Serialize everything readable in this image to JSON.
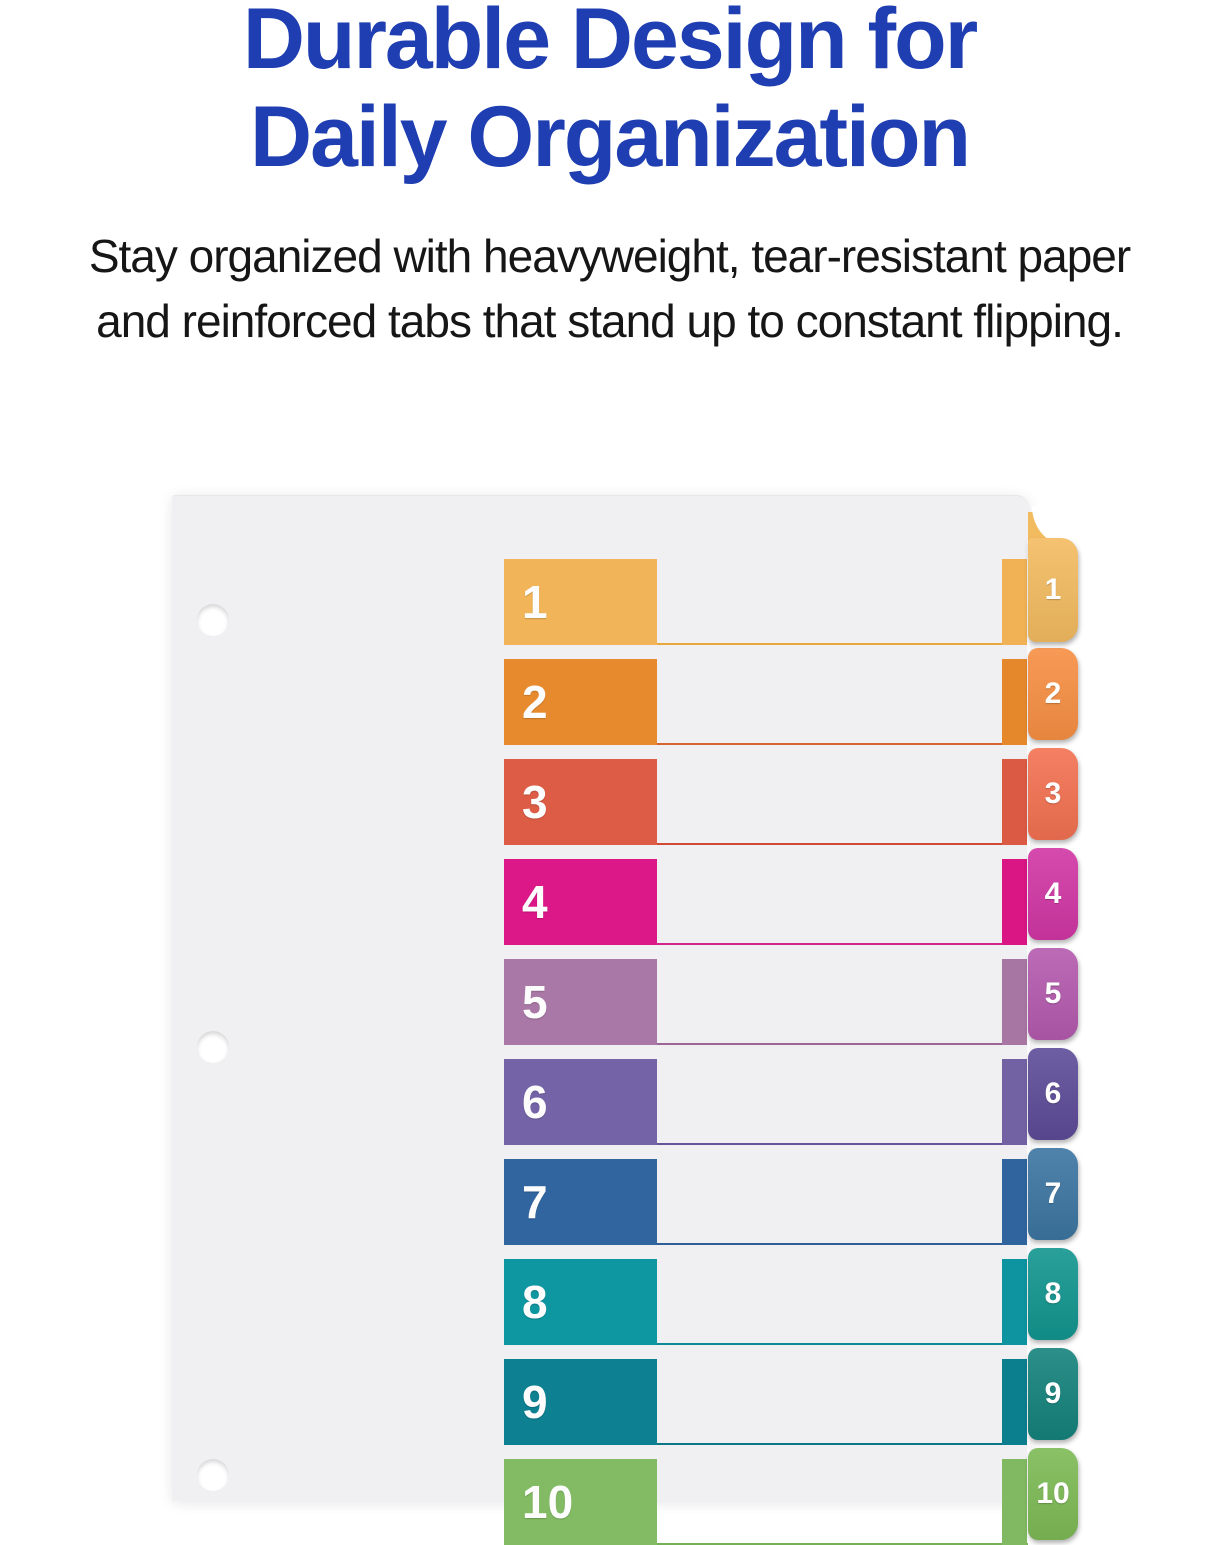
{
  "header": {
    "title_lines": [
      "Durable Design for",
      "Daily Organization"
    ],
    "subtitle_lines": [
      "Stay organized with heavyweight, tear-resistant paper",
      "and reinforced tabs that stand up to constant flipping."
    ]
  },
  "colors": {
    "background": "#ffffff",
    "title": "#1e3eb1",
    "subtitle": "#161616",
    "sheet": "#f0f0f2",
    "number_text": "#fdfdfd",
    "tab_text": "#ffffff"
  },
  "divider": {
    "hole_count": 3,
    "rows": [
      {
        "label": "1",
        "block": "#f1b459",
        "strip": "#f0b254",
        "tab": "#f3bb60",
        "rule": "#e9a83e"
      },
      {
        "label": "2",
        "block": "#e78a2d",
        "strip": "#e5882b",
        "tab": "#f78f43",
        "rule": "#d4652f"
      },
      {
        "label": "3",
        "block": "#dd5c45",
        "strip": "#db5a43",
        "tab": "#f37151",
        "rule": "#d14a33"
      },
      {
        "label": "4",
        "block": "#dc1787",
        "strip": "#da1584",
        "tab": "#d136a4",
        "rule": "#d3258d"
      },
      {
        "label": "5",
        "block": "#a978a6",
        "strip": "#a776a3",
        "tab": "#b45aae",
        "rule": "#9c6597"
      },
      {
        "label": "6",
        "block": "#7464a7",
        "strip": "#7262a4",
        "tab": "#5d4b98",
        "rule": "#66549a"
      },
      {
        "label": "7",
        "block": "#30659f",
        "strip": "#2f649e",
        "tab": "#3c75a1",
        "rule": "#2e5f96"
      },
      {
        "label": "8",
        "block": "#0e96a1",
        "strip": "#0d94a0",
        "tab": "#12958f",
        "rule": "#0c8b97"
      },
      {
        "label": "9",
        "block": "#0d8191",
        "strip": "#0c7f8f",
        "tab": "#14827b",
        "rule": "#0b7686"
      },
      {
        "label": "10",
        "block": "#82bb63",
        "strip": "#80b961",
        "tab": "#7dba55",
        "rule": "#75af56"
      }
    ]
  }
}
